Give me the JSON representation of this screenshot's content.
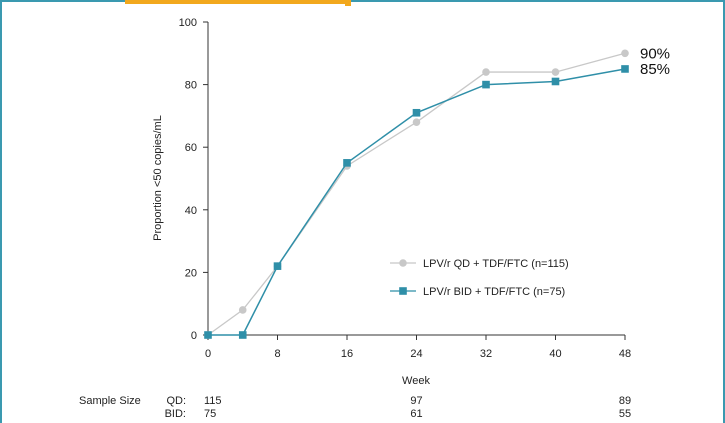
{
  "chart_data": {
    "type": "line",
    "xlabel": "Week",
    "ylabel": "Proportion <50 copies/mL",
    "ylim": [
      0,
      100
    ],
    "xlim": [
      0,
      48
    ],
    "x_ticks": [
      0,
      8,
      16,
      24,
      32,
      40,
      48
    ],
    "y_ticks": [
      0,
      20,
      40,
      60,
      80,
      100
    ],
    "grid": false,
    "legend_position": "center-right",
    "series": [
      {
        "name": "LPV/r QD + TDF/FTC (n=115)",
        "color": "#c8c8c8",
        "marker": "circle",
        "x": [
          0,
          4,
          8,
          16,
          24,
          32,
          40,
          48
        ],
        "y": [
          0,
          8,
          22,
          54,
          68,
          84,
          84,
          90
        ],
        "end_label": "90%"
      },
      {
        "name": "LPV/r BID + TDF/FTC (n=75)",
        "color": "#2f8fa8",
        "marker": "square",
        "x": [
          0,
          4,
          8,
          16,
          24,
          32,
          40,
          48
        ],
        "y": [
          0,
          0,
          22,
          55,
          71,
          80,
          81,
          85
        ],
        "end_label": "85%"
      }
    ],
    "sample_size": {
      "title": "Sample Size",
      "rows": [
        {
          "label": "QD:",
          "values": [
            {
              "x": 0,
              "text": "115"
            },
            {
              "x": 24,
              "text": "97"
            },
            {
              "x": 48,
              "text": "89"
            }
          ]
        },
        {
          "label": "BID:",
          "values": [
            {
              "x": 0,
              "text": "75"
            },
            {
              "x": 24,
              "text": "61"
            },
            {
              "x": 48,
              "text": "55"
            }
          ]
        }
      ]
    }
  }
}
